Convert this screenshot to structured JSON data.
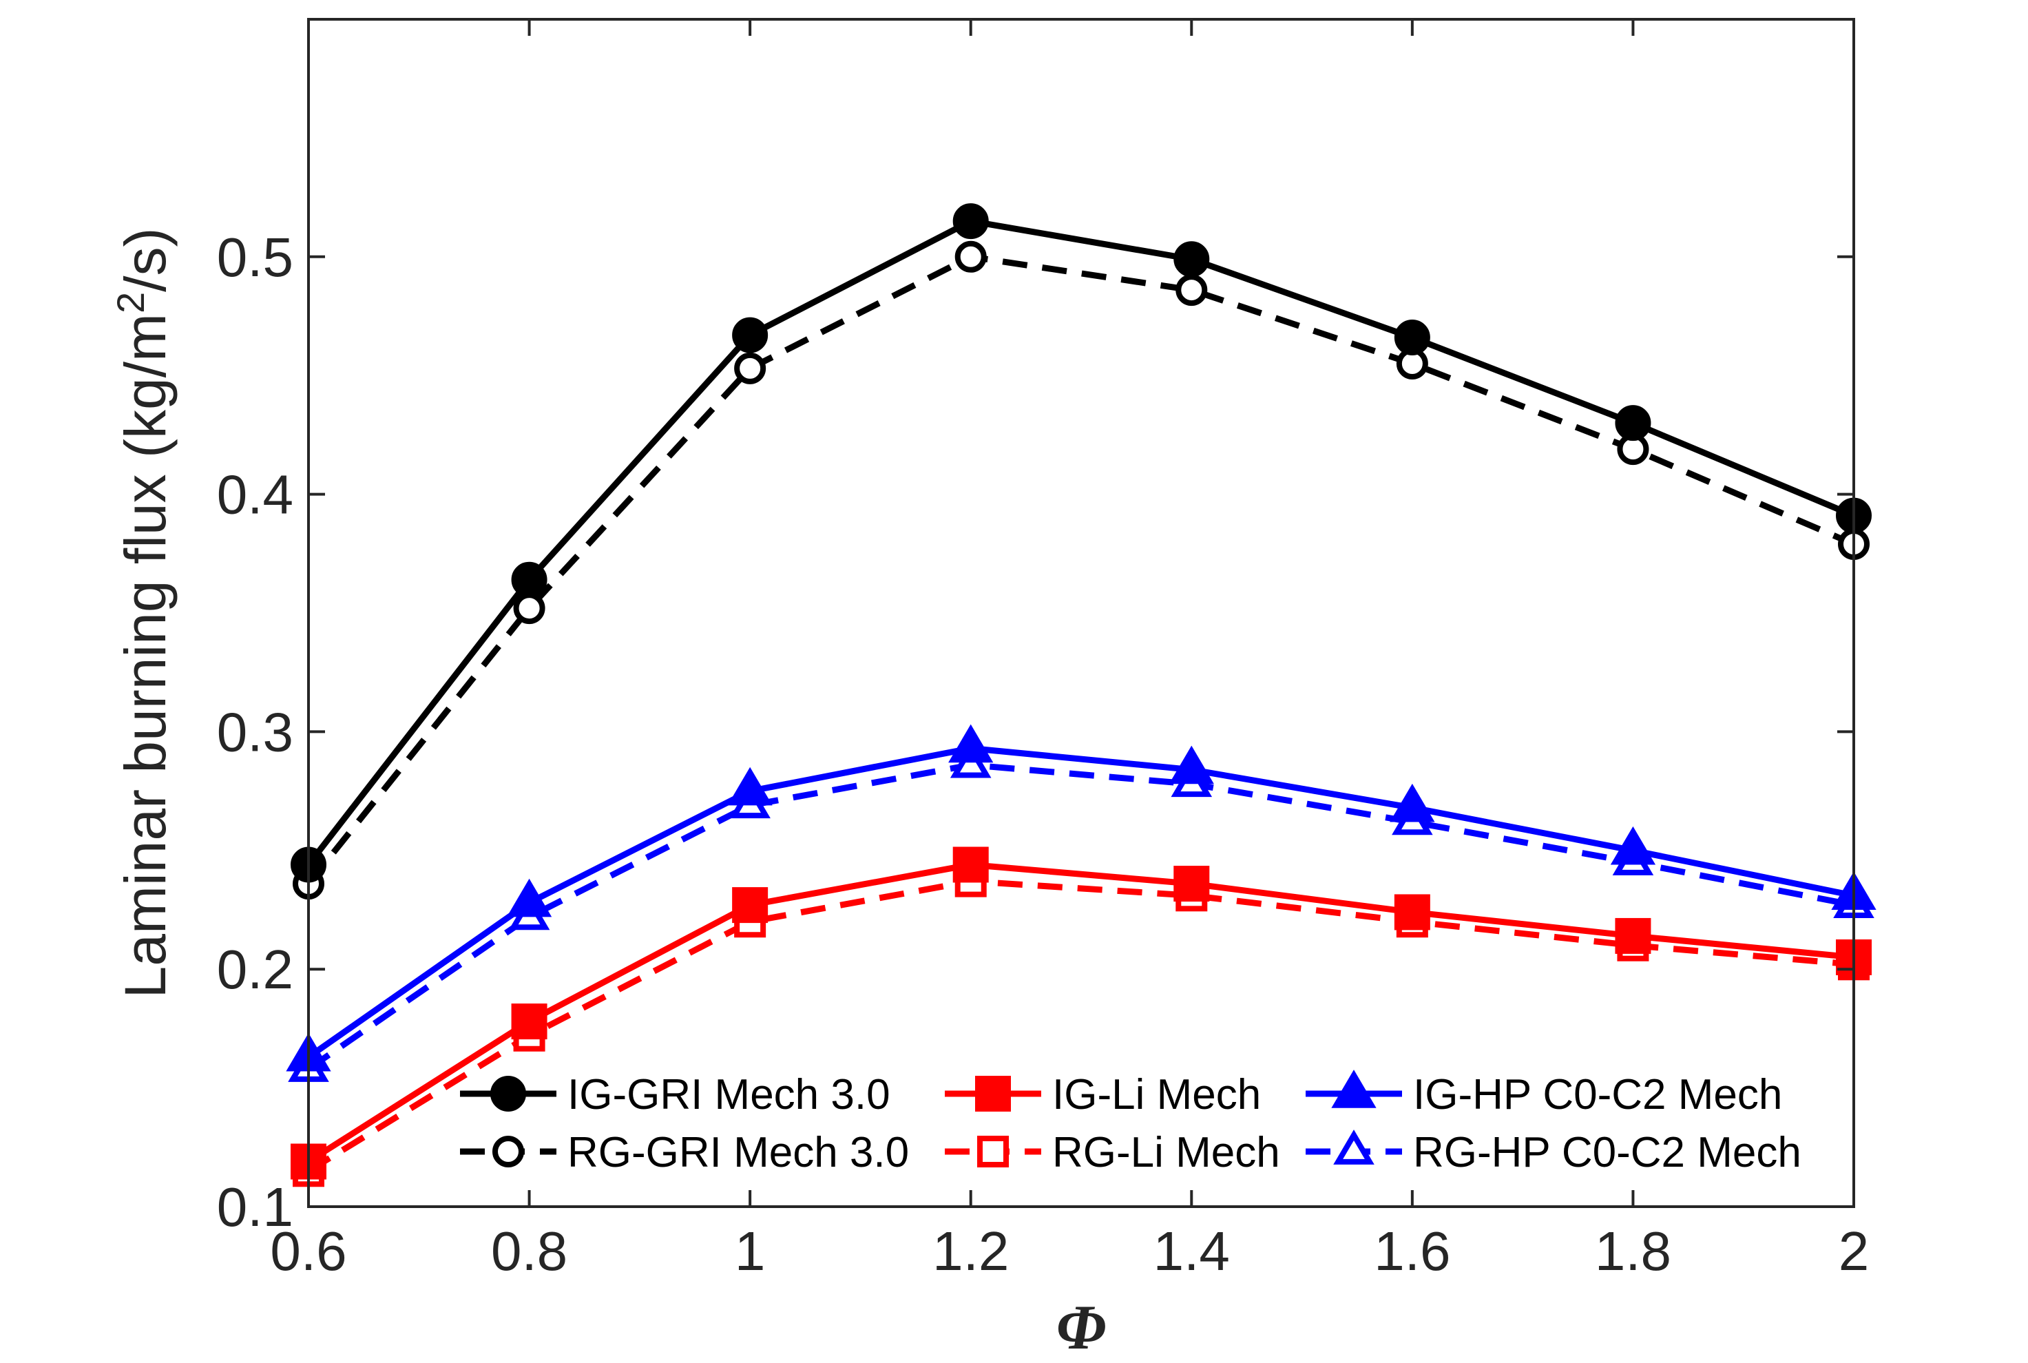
{
  "chart_data": {
    "type": "line",
    "xlabel": "Φ",
    "ylabel_main": "Laminar burning flux (kg/m",
    "ylabel_sup": "2",
    "ylabel_end": "/s)",
    "xlim": [
      0.6,
      2.0
    ],
    "ylim": [
      0.1,
      0.6
    ],
    "x_ticks": [
      0.6,
      0.8,
      1.0,
      1.2,
      1.4,
      1.6,
      1.8,
      2.0
    ],
    "x_tick_labels": [
      "0.6",
      "0.8",
      "1",
      "1.2",
      "1.4",
      "1.6",
      "1.8",
      "2"
    ],
    "y_ticks": [
      0.1,
      0.2,
      0.3,
      0.4,
      0.5
    ],
    "y_tick_labels": [
      "0.1",
      "0.2",
      "0.3",
      "0.4",
      "0.5"
    ],
    "grid": false,
    "legend_position": "bottom-right",
    "x": [
      0.6,
      0.8,
      1.0,
      1.2,
      1.4,
      1.6,
      1.8,
      2.0
    ],
    "series": [
      {
        "name": "IG-GRI Mech 3.0",
        "color": "#000000",
        "line": "solid",
        "marker": "circle",
        "filled": true,
        "values": [
          0.244,
          0.364,
          0.467,
          0.515,
          0.499,
          0.466,
          0.43,
          0.391
        ]
      },
      {
        "name": "RG-GRI Mech 3.0",
        "color": "#000000",
        "line": "dashed",
        "marker": "circle",
        "filled": false,
        "values": [
          0.236,
          0.352,
          0.453,
          0.5,
          0.486,
          0.455,
          0.419,
          0.379
        ]
      },
      {
        "name": "IG-Li Mech",
        "color": "#ff0000",
        "line": "solid",
        "marker": "square",
        "filled": true,
        "values": [
          0.119,
          0.178,
          0.227,
          0.244,
          0.236,
          0.224,
          0.214,
          0.205
        ]
      },
      {
        "name": "RG-Li Mech",
        "color": "#ff0000",
        "line": "dashed",
        "marker": "square",
        "filled": false,
        "values": [
          0.115,
          0.172,
          0.22,
          0.237,
          0.231,
          0.22,
          0.21,
          0.202
        ]
      },
      {
        "name": "IG-HP C0-C2 Mech",
        "color": "#0000ff",
        "line": "solid",
        "marker": "triangle",
        "filled": true,
        "values": [
          0.163,
          0.228,
          0.275,
          0.293,
          0.284,
          0.268,
          0.25,
          0.231
        ]
      },
      {
        "name": "RG-HP C0-C2 Mech",
        "color": "#0000ff",
        "line": "dashed",
        "marker": "triangle",
        "filled": false,
        "values": [
          0.158,
          0.222,
          0.269,
          0.286,
          0.278,
          0.262,
          0.245,
          0.227
        ]
      }
    ]
  }
}
